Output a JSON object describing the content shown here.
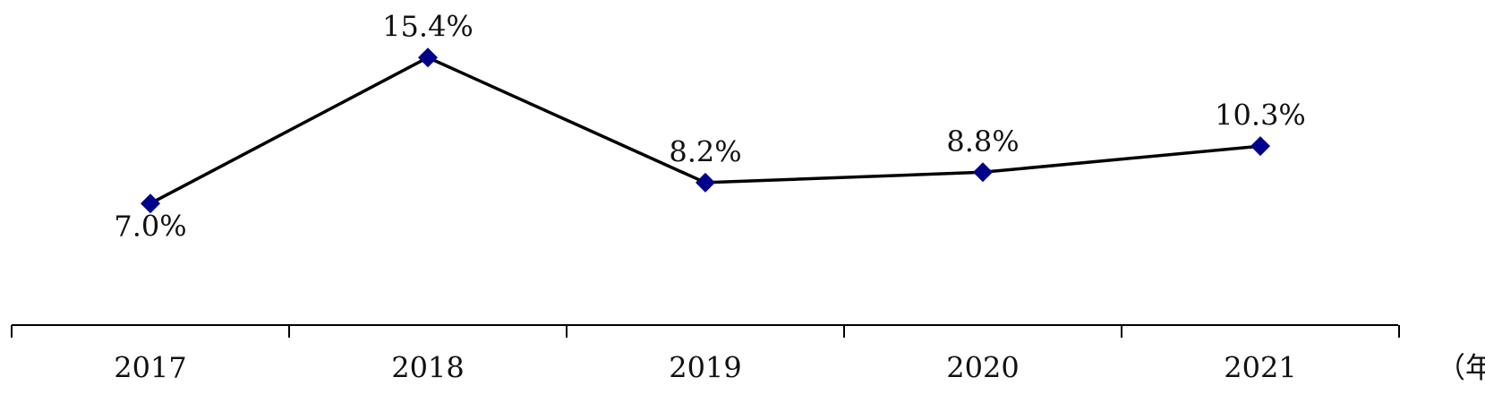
{
  "chart_data": {
    "type": "line",
    "categories": [
      "2017",
      "2018",
      "2019",
      "2020",
      "2021"
    ],
    "values": [
      7.0,
      15.4,
      8.2,
      8.8,
      10.3
    ],
    "value_labels": [
      "7.0%",
      "15.4%",
      "8.2%",
      "8.8%",
      "10.3%"
    ],
    "x_label": "（年）",
    "color": "#000000",
    "marker_color": "#00008b"
  }
}
